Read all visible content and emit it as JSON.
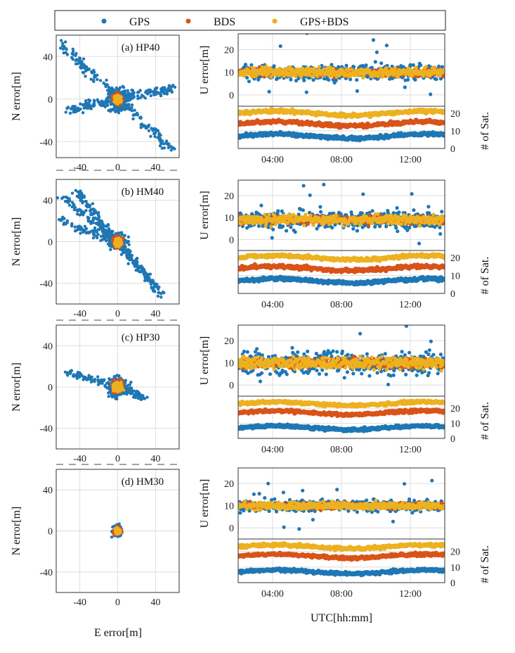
{
  "legend": {
    "entries": [
      {
        "label": "GPS",
        "color": "#1f77b4"
      },
      {
        "label": "BDS",
        "color": "#d95319"
      },
      {
        "label": "GPS+BDS",
        "color": "#edb120"
      }
    ]
  },
  "colors": {
    "gps": "#1f77b4",
    "bds": "#d95319",
    "combo": "#edb120"
  },
  "labels": {
    "scatter_xlabel": "E error[m]",
    "scatter_ylabel": "N error[m]",
    "ts_ylabel": "U error[m]",
    "sat_ylabel": "# of Sat.",
    "ts_xlabel": "UTC[hh:mm]"
  },
  "chart_data": [
    {
      "type": "scatter",
      "panel": "(a) HP40",
      "xlabel": "",
      "ylabel": "N error[m]",
      "xlim": [
        -65,
        65
      ],
      "ylim": [
        -55,
        60
      ],
      "xticks": [
        "-40",
        "0",
        "40"
      ],
      "yticks": [
        "40",
        "0",
        "-40"
      ],
      "spread": {
        "GPS": {
          "arms": [
            [
              -60,
              52
            ],
            [
              60,
              10
            ],
            [
              60,
              -50
            ],
            [
              -55,
              -10
            ]
          ],
          "core": 12
        },
        "BDS": {
          "core": 6
        },
        "GPS+BDS": {
          "core": 4
        }
      }
    },
    {
      "type": "scatter",
      "panel": "(b) HM40",
      "xlabel": "",
      "ylabel": "N error[m]",
      "xlim": [
        -65,
        65
      ],
      "ylim": [
        -60,
        60
      ],
      "xticks": [
        "-40",
        "0",
        "40"
      ],
      "yticks": [
        "40",
        "0",
        "-40"
      ],
      "spread": {
        "GPS": {
          "arms": [
            [
              -60,
              20
            ],
            [
              -60,
              45
            ],
            [
              -45,
              50
            ],
            [
              50,
              -55
            ],
            [
              40,
              -45
            ]
          ],
          "core": 8
        },
        "BDS": {
          "core": 6
        },
        "GPS+BDS": {
          "core": 4
        }
      }
    },
    {
      "type": "scatter",
      "panel": "(c) HP30",
      "xlabel": "",
      "ylabel": "N error[m]",
      "xlim": [
        -65,
        65
      ],
      "ylim": [
        -60,
        60
      ],
      "xticks": [
        "-40",
        "0",
        "40"
      ],
      "yticks": [
        "40",
        "0",
        "-40"
      ],
      "spread": {
        "GPS": {
          "arms": [
            [
              -55,
              15
            ],
            [
              28,
              -10
            ]
          ],
          "core": 10
        },
        "BDS": {
          "core": 7
        },
        "GPS+BDS": {
          "core": 5
        }
      }
    },
    {
      "type": "scatter",
      "panel": "(d) HM30",
      "xlabel": "E error[m]",
      "ylabel": "N error[m]",
      "xlim": [
        -65,
        65
      ],
      "ylim": [
        -60,
        60
      ],
      "xticks": [
        "-40",
        "0",
        "40"
      ],
      "yticks": [
        "40",
        "0",
        "-40"
      ],
      "spread": {
        "GPS": {
          "arms": [],
          "core": 5
        },
        "BDS": {
          "core": 4
        },
        "GPS+BDS": {
          "core": 3
        }
      }
    },
    {
      "type": "line",
      "panel": "(a) U error",
      "ylabel": "U error[m]",
      "ylim": [
        -5,
        27
      ],
      "yticks": [
        "20",
        "10",
        "0"
      ],
      "xlim": [
        "02:00",
        "14:00"
      ],
      "series": [
        {
          "name": "GPS",
          "mean": 10,
          "noise": 2.5
        },
        {
          "name": "BDS",
          "mean": 10,
          "noise": 1.2
        },
        {
          "name": "GPS+BDS",
          "mean": 10,
          "noise": 1.5
        }
      ]
    },
    {
      "type": "line",
      "panel": "(a) # of Sat.",
      "ylabel": "# of Sat.",
      "ylim": [
        0,
        24
      ],
      "yticks": [
        "20",
        "10",
        "0"
      ],
      "xticks": [
        "04:00",
        "08:00",
        "12:00"
      ],
      "series": [
        {
          "name": "GPS",
          "mean": 7
        },
        {
          "name": "BDS",
          "mean": 14
        },
        {
          "name": "GPS+BDS",
          "mean": 20
        }
      ]
    },
    {
      "type": "line",
      "panel": "(b) U error",
      "ylabel": "U error[m]",
      "ylim": [
        -5,
        27
      ],
      "yticks": [
        "20",
        "10",
        "0"
      ],
      "xlim": [
        "02:00",
        "14:00"
      ],
      "series": [
        {
          "name": "GPS",
          "mean": 9,
          "noise": 3
        },
        {
          "name": "BDS",
          "mean": 9,
          "noise": 1.2
        },
        {
          "name": "GPS+BDS",
          "mean": 9,
          "noise": 1.5
        }
      ]
    },
    {
      "type": "line",
      "panel": "(b) # of Sat.",
      "ylabel": "# of Sat.",
      "ylim": [
        0,
        24
      ],
      "yticks": [
        "20",
        "10",
        "0"
      ],
      "xticks": [
        "04:00",
        "08:00",
        "12:00"
      ],
      "series": [
        {
          "name": "GPS",
          "mean": 7
        },
        {
          "name": "BDS",
          "mean": 14
        },
        {
          "name": "GPS+BDS",
          "mean": 20
        }
      ]
    },
    {
      "type": "line",
      "panel": "(c) U error",
      "ylabel": "U error[m]",
      "ylim": [
        -5,
        27
      ],
      "yticks": [
        "20",
        "10",
        "0"
      ],
      "xlim": [
        "02:00",
        "14:00"
      ],
      "series": [
        {
          "name": "GPS",
          "mean": 10,
          "noise": 3.5
        },
        {
          "name": "BDS",
          "mean": 10,
          "noise": 1.5
        },
        {
          "name": "GPS+BDS",
          "mean": 10,
          "noise": 1.8
        }
      ]
    },
    {
      "type": "line",
      "panel": "(c) # of Sat.",
      "ylabel": "# of Sat.",
      "ylim": [
        0,
        28
      ],
      "yticks": [
        "20",
        "10",
        "0"
      ],
      "xticks": [
        "04:00",
        "08:00",
        "12:00"
      ],
      "series": [
        {
          "name": "GPS",
          "mean": 7
        },
        {
          "name": "BDS",
          "mean": 17
        },
        {
          "name": "GPS+BDS",
          "mean": 23
        }
      ]
    },
    {
      "type": "line",
      "panel": "(d) U error",
      "ylabel": "U error[m]",
      "ylim": [
        -5,
        27
      ],
      "yticks": [
        "20",
        "10",
        "0"
      ],
      "xlim": [
        "02:00",
        "14:00"
      ],
      "series": [
        {
          "name": "GPS",
          "mean": 10,
          "noise": 1.8
        },
        {
          "name": "BDS",
          "mean": 10,
          "noise": 1.0
        },
        {
          "name": "GPS+BDS",
          "mean": 10,
          "noise": 1.2
        }
      ]
    },
    {
      "type": "line",
      "panel": "(d) # of Sat.",
      "ylabel": "# of Sat.",
      "ylim": [
        0,
        28
      ],
      "yticks": [
        "20",
        "10",
        "0"
      ],
      "xticks": [
        "04:00",
        "08:00",
        "12:00"
      ],
      "xlabel": "UTC[hh:mm]",
      "series": [
        {
          "name": "GPS",
          "mean": 7
        },
        {
          "name": "BDS",
          "mean": 17
        },
        {
          "name": "GPS+BDS",
          "mean": 23
        }
      ]
    }
  ]
}
